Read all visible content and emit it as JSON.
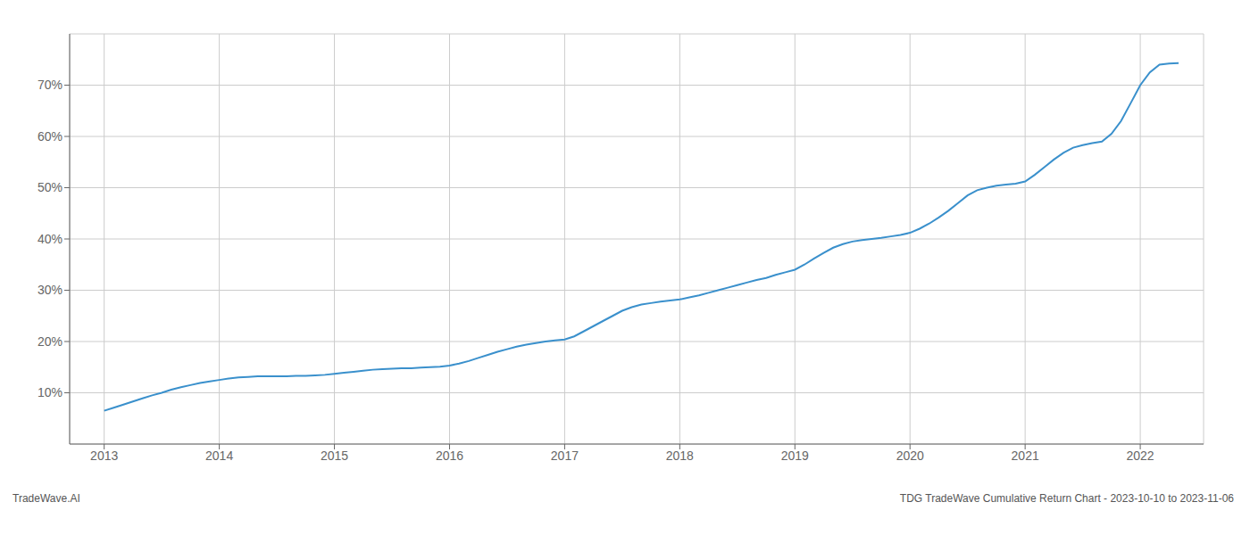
{
  "chart_data": {
    "type": "line",
    "annotations": [
      "TradeWave.AI",
      "TDG TradeWave Cumulative Return Chart - 2023-10-10 to 2023-11-06"
    ],
    "x": [
      2013.0,
      2013.083,
      2013.167,
      2013.25,
      2013.333,
      2013.417,
      2013.5,
      2013.583,
      2013.667,
      2013.75,
      2013.833,
      2013.917,
      2014.0,
      2014.083,
      2014.167,
      2014.25,
      2014.333,
      2014.417,
      2014.5,
      2014.583,
      2014.667,
      2014.75,
      2014.833,
      2014.917,
      2015.0,
      2015.083,
      2015.167,
      2015.25,
      2015.333,
      2015.417,
      2015.5,
      2015.583,
      2015.667,
      2015.75,
      2015.833,
      2015.917,
      2016.0,
      2016.083,
      2016.167,
      2016.25,
      2016.333,
      2016.417,
      2016.5,
      2016.583,
      2016.667,
      2016.75,
      2016.833,
      2016.917,
      2017.0,
      2017.083,
      2017.167,
      2017.25,
      2017.333,
      2017.417,
      2017.5,
      2017.583,
      2017.667,
      2017.75,
      2017.833,
      2017.917,
      2018.0,
      2018.083,
      2018.167,
      2018.25,
      2018.333,
      2018.417,
      2018.5,
      2018.583,
      2018.667,
      2018.75,
      2018.833,
      2018.917,
      2019.0,
      2019.083,
      2019.167,
      2019.25,
      2019.333,
      2019.417,
      2019.5,
      2019.583,
      2019.667,
      2019.75,
      2019.833,
      2019.917,
      2020.0,
      2020.083,
      2020.167,
      2020.25,
      2020.333,
      2020.417,
      2020.5,
      2020.583,
      2020.667,
      2020.75,
      2020.833,
      2020.917,
      2021.0,
      2021.083,
      2021.167,
      2021.25,
      2021.333,
      2021.417,
      2021.5,
      2021.583,
      2021.667,
      2021.75,
      2021.833,
      2021.917,
      2022.0,
      2022.083,
      2022.167,
      2022.25,
      2022.333
    ],
    "values": [
      6.5,
      7.1,
      7.7,
      8.3,
      8.9,
      9.5,
      10.0,
      10.6,
      11.1,
      11.5,
      11.9,
      12.2,
      12.5,
      12.8,
      13.0,
      13.1,
      13.2,
      13.2,
      13.2,
      13.2,
      13.3,
      13.3,
      13.4,
      13.5,
      13.7,
      13.9,
      14.1,
      14.3,
      14.5,
      14.6,
      14.7,
      14.8,
      14.8,
      14.9,
      15.0,
      15.1,
      15.3,
      15.7,
      16.2,
      16.8,
      17.4,
      18.0,
      18.5,
      19.0,
      19.4,
      19.7,
      20.0,
      20.2,
      20.4,
      21.0,
      22.0,
      23.0,
      24.0,
      25.0,
      26.0,
      26.7,
      27.2,
      27.5,
      27.8,
      28.0,
      28.2,
      28.6,
      29.0,
      29.5,
      30.0,
      30.5,
      31.0,
      31.5,
      32.0,
      32.4,
      33.0,
      33.5,
      34.0,
      35.0,
      36.2,
      37.3,
      38.3,
      39.0,
      39.5,
      39.8,
      40.0,
      40.2,
      40.5,
      40.8,
      41.2,
      42.0,
      43.0,
      44.2,
      45.5,
      47.0,
      48.5,
      49.5,
      50.0,
      50.4,
      50.6,
      50.8,
      51.2,
      52.5,
      54.0,
      55.5,
      56.8,
      57.8,
      58.3,
      58.7,
      59.0,
      60.5,
      63.0,
      66.5,
      70.0,
      72.5,
      74.0,
      74.2,
      74.3
    ],
    "color": "#3a90cc",
    "xlim": [
      2012.7,
      2022.55
    ],
    "ylim": [
      0,
      80
    ],
    "xticks": [
      2013,
      2014,
      2015,
      2016,
      2017,
      2018,
      2019,
      2020,
      2021,
      2022
    ],
    "yticks": [
      {
        "value": 10,
        "label": "10%"
      },
      {
        "value": 20,
        "label": "20%"
      },
      {
        "value": 30,
        "label": "30%"
      },
      {
        "value": 40,
        "label": "40%"
      },
      {
        "value": 50,
        "label": "50%"
      },
      {
        "value": 60,
        "label": "60%"
      },
      {
        "value": 70,
        "label": "70%"
      }
    ],
    "grid": true
  }
}
